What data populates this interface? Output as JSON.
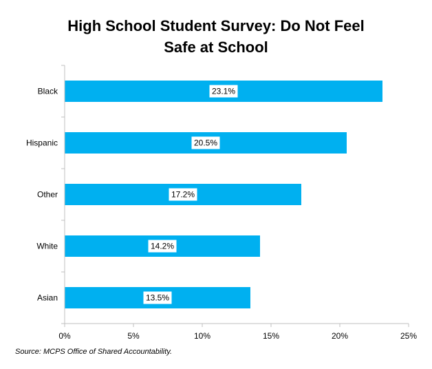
{
  "chart_data": {
    "type": "bar",
    "orientation": "horizontal",
    "title_lines": [
      "High School Student Survey: Do Not Feel",
      "Safe at School"
    ],
    "categories": [
      "Black",
      "Hispanic",
      "Other",
      "White",
      "Asian"
    ],
    "values": [
      23.1,
      20.5,
      17.2,
      14.2,
      13.5
    ],
    "data_labels": [
      "23.1%",
      "20.5%",
      "17.2%",
      "14.2%",
      "13.5%"
    ],
    "xlim": [
      0,
      25
    ],
    "x_ticks": [
      0,
      5,
      10,
      15,
      20,
      25
    ],
    "x_tick_labels": [
      "0%",
      "5%",
      "10%",
      "15%",
      "20%",
      "25%"
    ],
    "grid": false,
    "legend": "none",
    "bar_color": "#00B0F0"
  },
  "source": "Source: MCPS Office of Shared Accountability."
}
